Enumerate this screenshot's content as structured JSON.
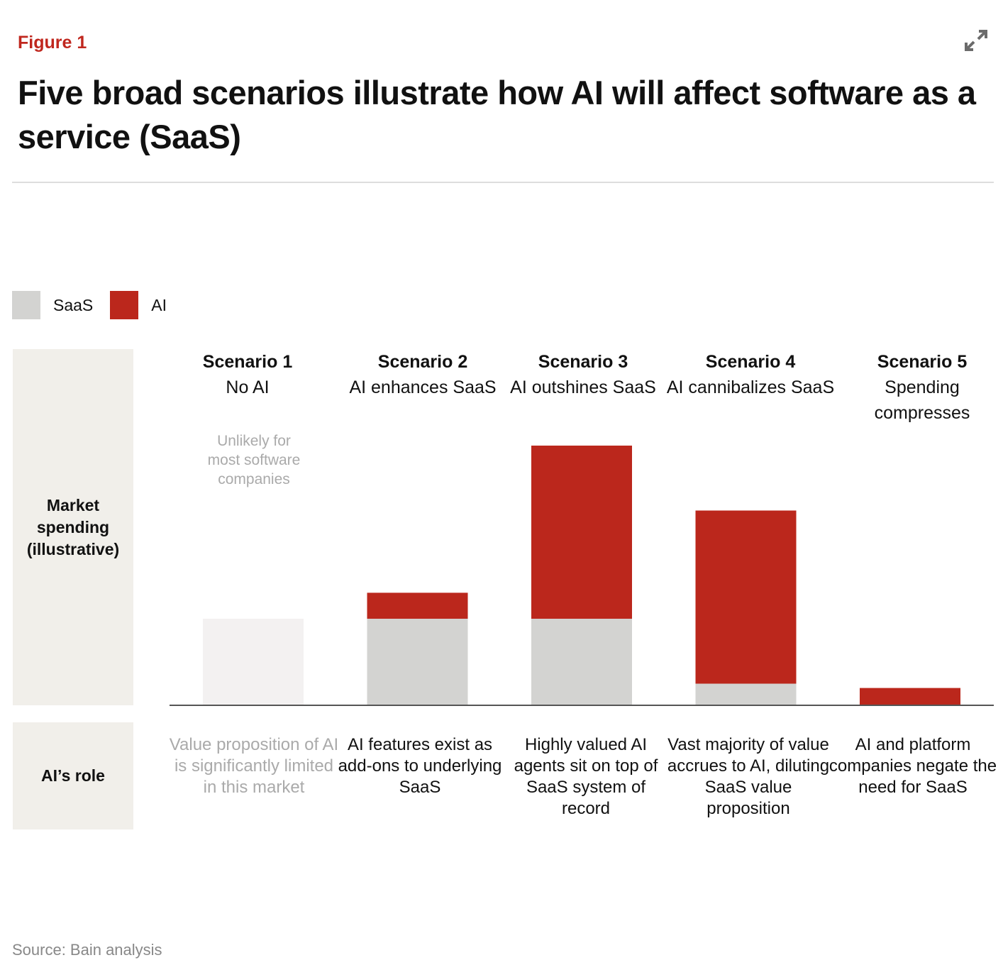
{
  "figure_label": "Figure 1",
  "title": "Five broad scenarios illustrate how AI will affect software as a service (SaaS)",
  "expand_icon": "expand-arrows-icon",
  "source": "Source: Bain analysis",
  "row_labels": {
    "spending": "Market spending (illustrative)",
    "role": "AI’s role"
  },
  "colors": {
    "accent": "#c0271e",
    "saas": "#d3d3d1",
    "ai": "#bb271c",
    "saas_unlikely": "#f3f1f1",
    "side_panel": "#f1efea"
  },
  "chart_data": {
    "type": "bar",
    "stacked": true,
    "legend": {
      "placement": "top-left",
      "entries": [
        "SaaS",
        "AI"
      ]
    },
    "categories": [
      "Scenario 1",
      "Scenario 2",
      "Scenario 3",
      "Scenario 4",
      "Scenario 5"
    ],
    "subtitles": [
      "No AI",
      "AI enhances SaaS",
      "AI outshines SaaS",
      "AI cannibalizes SaaS",
      "Spending compresses"
    ],
    "series": [
      {
        "name": "SaaS",
        "values": [
          100,
          100,
          100,
          25,
          0
        ]
      },
      {
        "name": "AI",
        "values": [
          0,
          30,
          200,
          200,
          20
        ]
      }
    ],
    "unlikely": [
      true,
      false,
      false,
      false,
      false
    ],
    "annotations": [
      {
        "category": "Scenario 1",
        "text": "Unlikely for most software companies"
      }
    ],
    "ai_role": [
      "Value proposition of AI is significantly limited in this market",
      "AI features exist as add-ons to underlying SaaS",
      "Highly valued AI agents sit on top of SaaS system of record",
      "Vast majority of value accrues to AI, diluting SaaS value proposition",
      "AI and platform companies negate the need for SaaS"
    ],
    "ylabel": "Market spending (illustrative)",
    "ylim": [
      0,
      300
    ],
    "grid": false
  }
}
